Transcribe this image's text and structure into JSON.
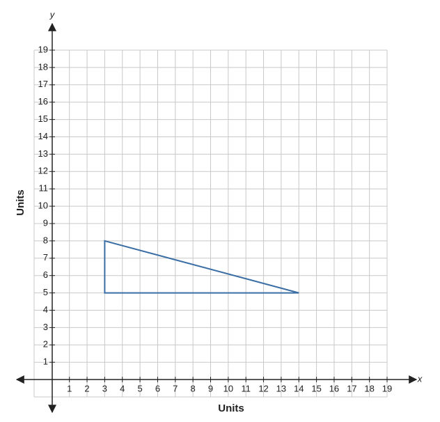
{
  "chart_data": {
    "type": "polygon",
    "x_label": "Units",
    "y_label": "Units",
    "x_axis_name": "x",
    "y_axis_name": "y",
    "xlim": [
      -1,
      19
    ],
    "ylim": [
      -1,
      19
    ],
    "xticks": [
      1,
      2,
      3,
      4,
      5,
      6,
      7,
      8,
      9,
      10,
      11,
      12,
      13,
      14,
      15,
      16,
      17,
      18,
      19
    ],
    "yticks": [
      1,
      2,
      3,
      4,
      5,
      6,
      7,
      8,
      9,
      10,
      11,
      12,
      13,
      14,
      15,
      16,
      17,
      18,
      19
    ],
    "grid": true,
    "series": [
      {
        "color": "#3b6ea5",
        "x": [
          3,
          3,
          14
        ],
        "y": [
          5,
          8,
          5
        ]
      }
    ]
  }
}
